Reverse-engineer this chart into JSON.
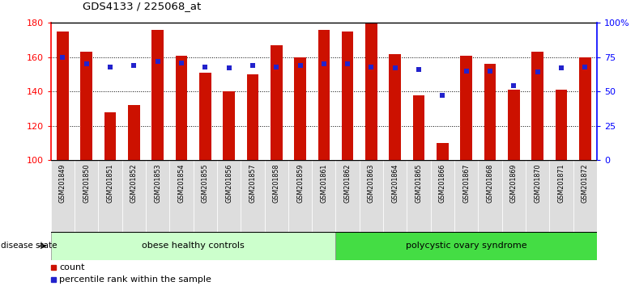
{
  "title": "GDS4133 / 225068_at",
  "samples": [
    "GSM201849",
    "GSM201850",
    "GSM201851",
    "GSM201852",
    "GSM201853",
    "GSM201854",
    "GSM201855",
    "GSM201856",
    "GSM201857",
    "GSM201858",
    "GSM201859",
    "GSM201861",
    "GSM201862",
    "GSM201863",
    "GSM201864",
    "GSM201865",
    "GSM201866",
    "GSM201867",
    "GSM201868",
    "GSM201869",
    "GSM201870",
    "GSM201871",
    "GSM201872"
  ],
  "counts": [
    175,
    163,
    128,
    132,
    176,
    161,
    151,
    140,
    150,
    167,
    160,
    176,
    175,
    180,
    162,
    138,
    110,
    161,
    156,
    141,
    163,
    141,
    160
  ],
  "percentiles": [
    75,
    70,
    68,
    69,
    72,
    71,
    68,
    67,
    69,
    68,
    69,
    70,
    70,
    68,
    67,
    66,
    47,
    65,
    65,
    54,
    64,
    67,
    68
  ],
  "group1_count": 12,
  "group1_label": "obese healthy controls",
  "group2_label": "polycystic ovary syndrome",
  "group1_color": "#ccffcc",
  "group2_color": "#44dd44",
  "bar_color": "#cc1100",
  "dot_color": "#2222cc",
  "ylim_left": [
    100,
    180
  ],
  "ylim_right": [
    0,
    100
  ],
  "yticks_left": [
    100,
    120,
    140,
    160,
    180
  ],
  "yticks_right": [
    0,
    25,
    50,
    75,
    100
  ],
  "ytick_labels_right": [
    "0",
    "25",
    "50",
    "75",
    "100%"
  ],
  "disease_state_label": "disease state",
  "legend_count": "count",
  "legend_pct": "percentile rank within the sample",
  "fig_width": 7.84,
  "fig_height": 3.54
}
